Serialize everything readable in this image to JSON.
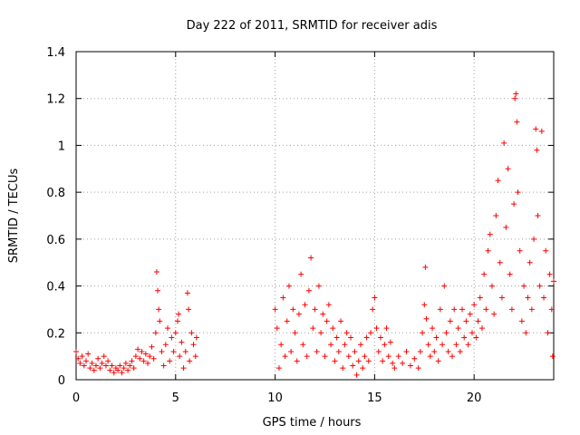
{
  "chart_data": {
    "type": "scatter",
    "title": "Day 222 of 2011, SRMTID for receiver adis",
    "xlabel": "GPS time / hours",
    "ylabel": "SRMTID / TECUs",
    "xlim": [
      0,
      24
    ],
    "ylim": [
      0,
      1.4
    ],
    "x_ticks": [
      0,
      5,
      10,
      15,
      20
    ],
    "y_ticks": [
      0,
      0.2,
      0.4,
      0.6,
      0.8,
      1,
      1.2,
      1.4
    ],
    "x_tick_labels": [
      "0",
      "5",
      "10",
      "15",
      "20"
    ],
    "y_tick_labels": [
      "0",
      "0.2",
      "0.4",
      "0.6",
      "0.8",
      "1",
      "1.2",
      "1.4"
    ],
    "grid": true,
    "marker": "+",
    "color": "#ff0000",
    "series": [
      {
        "name": "SRMTID",
        "points": [
          [
            0.0,
            0.12
          ],
          [
            0.1,
            0.09
          ],
          [
            0.2,
            0.07
          ],
          [
            0.3,
            0.1
          ],
          [
            0.4,
            0.06
          ],
          [
            0.5,
            0.08
          ],
          [
            0.6,
            0.11
          ],
          [
            0.7,
            0.05
          ],
          [
            0.8,
            0.07
          ],
          [
            0.9,
            0.04
          ],
          [
            1.0,
            0.06
          ],
          [
            1.1,
            0.09
          ],
          [
            1.2,
            0.05
          ],
          [
            1.3,
            0.07
          ],
          [
            1.4,
            0.1
          ],
          [
            1.5,
            0.06
          ],
          [
            1.6,
            0.08
          ],
          [
            1.7,
            0.04
          ],
          [
            1.8,
            0.06
          ],
          [
            1.9,
            0.03
          ],
          [
            2.0,
            0.05
          ],
          [
            2.1,
            0.04
          ],
          [
            2.2,
            0.06
          ],
          [
            2.3,
            0.03
          ],
          [
            2.4,
            0.05
          ],
          [
            2.5,
            0.07
          ],
          [
            2.6,
            0.04
          ],
          [
            2.7,
            0.06
          ],
          [
            2.8,
            0.08
          ],
          [
            2.9,
            0.05
          ],
          [
            3.0,
            0.1
          ],
          [
            3.1,
            0.13
          ],
          [
            3.2,
            0.09
          ],
          [
            3.3,
            0.12
          ],
          [
            3.4,
            0.08
          ],
          [
            3.5,
            0.11
          ],
          [
            3.6,
            0.07
          ],
          [
            3.7,
            0.1
          ],
          [
            3.8,
            0.14
          ],
          [
            3.9,
            0.09
          ],
          [
            4.0,
            0.2
          ],
          [
            4.05,
            0.46
          ],
          [
            4.1,
            0.38
          ],
          [
            4.15,
            0.3
          ],
          [
            4.2,
            0.25
          ],
          [
            4.3,
            0.12
          ],
          [
            4.4,
            0.06
          ],
          [
            4.5,
            0.15
          ],
          [
            4.6,
            0.22
          ],
          [
            4.7,
            0.08
          ],
          [
            4.8,
            0.18
          ],
          [
            4.9,
            0.12
          ],
          [
            5.0,
            0.2
          ],
          [
            5.1,
            0.25
          ],
          [
            5.15,
            0.28
          ],
          [
            5.2,
            0.1
          ],
          [
            5.3,
            0.16
          ],
          [
            5.4,
            0.05
          ],
          [
            5.5,
            0.12
          ],
          [
            5.6,
            0.37
          ],
          [
            5.65,
            0.3
          ],
          [
            5.7,
            0.08
          ],
          [
            5.8,
            0.2
          ],
          [
            5.9,
            0.15
          ],
          [
            6.0,
            0.1
          ],
          [
            6.05,
            0.18
          ],
          [
            10.0,
            0.3
          ],
          [
            10.1,
            0.22
          ],
          [
            10.2,
            0.05
          ],
          [
            10.3,
            0.15
          ],
          [
            10.4,
            0.35
          ],
          [
            10.5,
            0.1
          ],
          [
            10.6,
            0.25
          ],
          [
            10.7,
            0.4
          ],
          [
            10.8,
            0.12
          ],
          [
            10.9,
            0.3
          ],
          [
            11.0,
            0.2
          ],
          [
            11.1,
            0.08
          ],
          [
            11.2,
            0.28
          ],
          [
            11.3,
            0.45
          ],
          [
            11.4,
            0.15
          ],
          [
            11.5,
            0.32
          ],
          [
            11.6,
            0.1
          ],
          [
            11.7,
            0.38
          ],
          [
            11.8,
            0.52
          ],
          [
            11.9,
            0.22
          ],
          [
            12.0,
            0.3
          ],
          [
            12.1,
            0.12
          ],
          [
            12.2,
            0.4
          ],
          [
            12.3,
            0.2
          ],
          [
            12.4,
            0.28
          ],
          [
            12.5,
            0.1
          ],
          [
            12.6,
            0.25
          ],
          [
            12.7,
            0.32
          ],
          [
            12.8,
            0.15
          ],
          [
            12.9,
            0.22
          ],
          [
            13.0,
            0.08
          ],
          [
            13.1,
            0.18
          ],
          [
            13.2,
            0.12
          ],
          [
            13.3,
            0.25
          ],
          [
            13.4,
            0.05
          ],
          [
            13.5,
            0.15
          ],
          [
            13.6,
            0.2
          ],
          [
            13.7,
            0.1
          ],
          [
            13.8,
            0.18
          ],
          [
            13.9,
            0.06
          ],
          [
            14.0,
            0.12
          ],
          [
            14.1,
            0.02
          ],
          [
            14.2,
            0.08
          ],
          [
            14.3,
            0.15
          ],
          [
            14.4,
            0.05
          ],
          [
            14.5,
            0.1
          ],
          [
            14.6,
            0.18
          ],
          [
            14.7,
            0.08
          ],
          [
            14.8,
            0.2
          ],
          [
            14.9,
            0.3
          ],
          [
            15.0,
            0.35
          ],
          [
            15.1,
            0.22
          ],
          [
            15.2,
            0.12
          ],
          [
            15.3,
            0.18
          ],
          [
            15.4,
            0.08
          ],
          [
            15.5,
            0.15
          ],
          [
            15.6,
            0.22
          ],
          [
            15.7,
            0.1
          ],
          [
            15.8,
            0.16
          ],
          [
            15.9,
            0.07
          ],
          [
            16.0,
            0.05
          ],
          [
            16.2,
            0.1
          ],
          [
            16.4,
            0.07
          ],
          [
            16.6,
            0.12
          ],
          [
            16.8,
            0.06
          ],
          [
            17.0,
            0.09
          ],
          [
            17.2,
            0.05
          ],
          [
            17.3,
            0.12
          ],
          [
            17.4,
            0.2
          ],
          [
            17.5,
            0.32
          ],
          [
            17.55,
            0.48
          ],
          [
            17.6,
            0.26
          ],
          [
            17.7,
            0.15
          ],
          [
            17.8,
            0.1
          ],
          [
            17.9,
            0.22
          ],
          [
            18.0,
            0.12
          ],
          [
            18.1,
            0.18
          ],
          [
            18.2,
            0.08
          ],
          [
            18.3,
            0.3
          ],
          [
            18.4,
            0.15
          ],
          [
            18.5,
            0.4
          ],
          [
            18.6,
            0.2
          ],
          [
            18.7,
            0.12
          ],
          [
            18.8,
            0.25
          ],
          [
            18.9,
            0.1
          ],
          [
            19.0,
            0.3
          ],
          [
            19.1,
            0.15
          ],
          [
            19.2,
            0.22
          ],
          [
            19.3,
            0.12
          ],
          [
            19.4,
            0.3
          ],
          [
            19.5,
            0.18
          ],
          [
            19.6,
            0.25
          ],
          [
            19.7,
            0.15
          ],
          [
            19.8,
            0.28
          ],
          [
            19.9,
            0.2
          ],
          [
            20.0,
            0.32
          ],
          [
            20.1,
            0.18
          ],
          [
            20.2,
            0.25
          ],
          [
            20.3,
            0.35
          ],
          [
            20.4,
            0.22
          ],
          [
            20.5,
            0.45
          ],
          [
            20.6,
            0.3
          ],
          [
            20.7,
            0.55
          ],
          [
            20.8,
            0.62
          ],
          [
            20.9,
            0.4
          ],
          [
            21.0,
            0.28
          ],
          [
            21.1,
            0.7
          ],
          [
            21.2,
            0.85
          ],
          [
            21.3,
            0.5
          ],
          [
            21.4,
            0.35
          ],
          [
            21.5,
            1.01
          ],
          [
            21.6,
            0.65
          ],
          [
            21.7,
            0.9
          ],
          [
            21.8,
            0.45
          ],
          [
            21.9,
            0.3
          ],
          [
            22.0,
            0.75
          ],
          [
            22.05,
            1.2
          ],
          [
            22.1,
            1.22
          ],
          [
            22.15,
            1.1
          ],
          [
            22.2,
            0.8
          ],
          [
            22.3,
            0.55
          ],
          [
            22.4,
            0.25
          ],
          [
            22.5,
            0.4
          ],
          [
            22.6,
            0.2
          ],
          [
            22.7,
            0.35
          ],
          [
            22.8,
            0.5
          ],
          [
            22.9,
            0.3
          ],
          [
            23.0,
            0.6
          ],
          [
            23.1,
            1.07
          ],
          [
            23.15,
            0.98
          ],
          [
            23.2,
            0.7
          ],
          [
            23.3,
            0.4
          ],
          [
            23.4,
            1.06
          ],
          [
            23.5,
            0.35
          ],
          [
            23.6,
            0.55
          ],
          [
            23.7,
            0.2
          ],
          [
            23.8,
            0.45
          ],
          [
            23.9,
            0.3
          ],
          [
            23.95,
            0.1
          ],
          [
            24.0,
            0.42
          ]
        ]
      }
    ]
  }
}
